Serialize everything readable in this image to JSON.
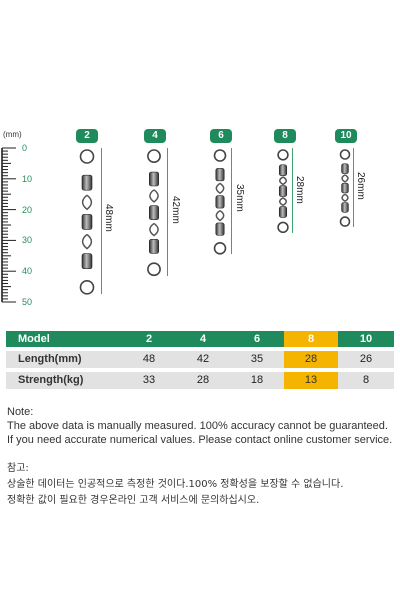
{
  "ruler": {
    "unit": "(mm)",
    "ticks": [
      "0",
      "10",
      "20",
      "30",
      "40",
      "50"
    ],
    "accent": "#2a8a5a"
  },
  "swivels": [
    {
      "size": "2",
      "length_label": "48mm",
      "length_mm": 48
    },
    {
      "size": "4",
      "length_label": "42mm",
      "length_mm": 42
    },
    {
      "size": "6",
      "length_label": "35mm",
      "length_mm": 35
    },
    {
      "size": "8",
      "length_label": "28mm",
      "length_mm": 28
    },
    {
      "size": "10",
      "length_label": "26mm",
      "length_mm": 26
    }
  ],
  "table": {
    "header": {
      "label": "Model",
      "values": [
        "2",
        "4",
        "6",
        "8",
        "10"
      ]
    },
    "rows": [
      {
        "label": "Length(mm)",
        "values": [
          "48",
          "42",
          "35",
          "28",
          "26"
        ]
      },
      {
        "label": "Strength(kg)",
        "values": [
          "33",
          "28",
          "18",
          "13",
          "8"
        ]
      }
    ],
    "highlight_column": "8",
    "colors": {
      "header": "#1f8a5c",
      "row": "#e2e2e2",
      "highlight": "#f4b400"
    }
  },
  "notes": {
    "en_title": "Note:",
    "en_line1": "The above data is manually measured. 100% accuracy cannot be guaranteed.",
    "en_line2": "If you need accurate numerical values. Please contact online customer service.",
    "ko_title": "참고:",
    "ko_line1": "상술한 데이터는 인공적으로 측정한 것이다.100% 정확성을 보장할 수 없습니다.",
    "ko_line2": "정확한 값이 필요한 경우온라인 고객 서비스에 문의하십시오."
  }
}
